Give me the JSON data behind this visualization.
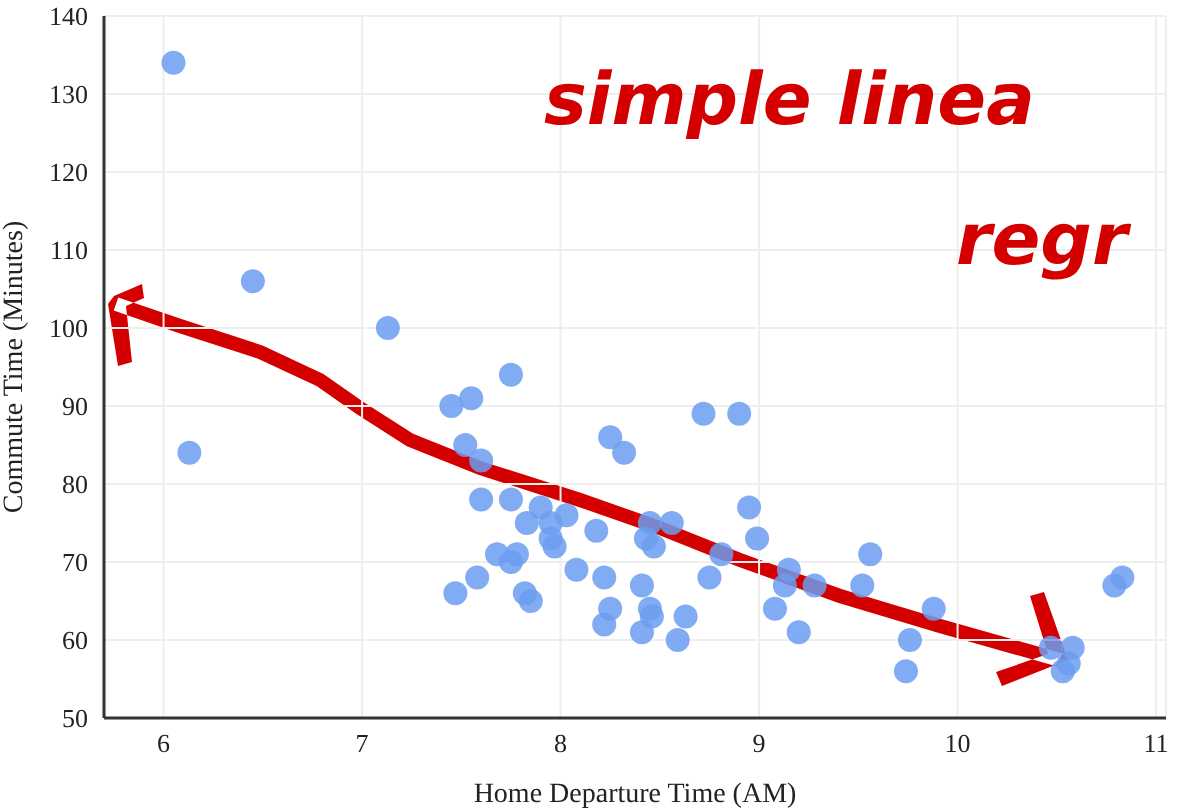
{
  "chart_data": {
    "type": "scatter",
    "xlabel": "Home Departure Time (AM)",
    "ylabel": "Commute Time (Minutes)",
    "annotations": [
      "simple linea",
      "regr"
    ],
    "xlim": [
      5.7,
      11.05
    ],
    "xticks": [
      6,
      7,
      8,
      9,
      10,
      11
    ],
    "ylim": [
      50,
      140
    ],
    "yticks": [
      50,
      60,
      70,
      80,
      90,
      100,
      110,
      120,
      130,
      140
    ],
    "grid": true,
    "marker": "circle",
    "color": "#6b9cf0",
    "x": [
      6.05,
      6.45,
      6.13,
      7.13,
      7.45,
      7.55,
      7.75,
      7.52,
      7.6,
      7.6,
      7.75,
      7.83,
      7.9,
      7.95,
      7.95,
      7.97,
      8.03,
      8.18,
      7.68,
      7.78,
      7.75,
      7.58,
      8.08,
      8.22,
      7.47,
      7.82,
      7.85,
      8.25,
      8.22,
      8.25,
      8.32,
      8.72,
      8.9,
      8.95,
      8.99,
      8.45,
      8.56,
      8.47,
      8.81,
      8.75,
      8.41,
      8.45,
      8.63,
      8.46,
      8.41,
      8.59,
      9.15,
      9.13,
      9.28,
      9.08,
      9.2,
      9.52,
      9.56,
      9.88,
      9.76,
      9.74,
      10.47,
      10.58,
      10.56,
      10.53,
      10.79,
      10.83,
      8.43
    ],
    "values": [
      134,
      106,
      84,
      100,
      90,
      91,
      94,
      85,
      83,
      78,
      78,
      75,
      77,
      75,
      73,
      72,
      76,
      74,
      71,
      71,
      70,
      68,
      69,
      68,
      66,
      66,
      65,
      64,
      62,
      86,
      84,
      89,
      89,
      77,
      73,
      75,
      75,
      72,
      71,
      68,
      67,
      64,
      63,
      63,
      61,
      60,
      69,
      67,
      67,
      64,
      61,
      67,
      71,
      64,
      60,
      56,
      59,
      59,
      57,
      56,
      67,
      68,
      73
    ]
  }
}
